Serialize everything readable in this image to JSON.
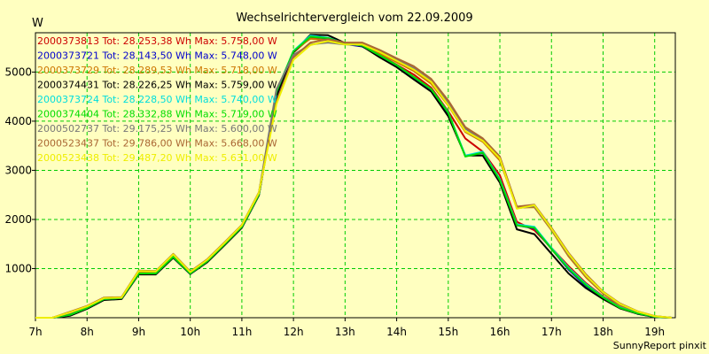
{
  "chart_data": {
    "type": "line",
    "title": "Wechselrichtervergleich vom 22.09.2009",
    "ylabel": "W",
    "xlabel": "",
    "footer": "SunnyReport pinxit",
    "ylim": [
      0,
      5800
    ],
    "xlim": [
      7,
      19.4
    ],
    "y_ticks": [
      1000,
      2000,
      3000,
      4000,
      5000
    ],
    "x_ticks": [
      {
        "label": "7h",
        "value": 7
      },
      {
        "label": "8h",
        "value": 8
      },
      {
        "label": "9h",
        "value": 9
      },
      {
        "label": "10h",
        "value": 10
      },
      {
        "label": "11h",
        "value": 11
      },
      {
        "label": "12h",
        "value": 12
      },
      {
        "label": "13h",
        "value": 13
      },
      {
        "label": "14h",
        "value": 14
      },
      {
        "label": "15h",
        "value": 15
      },
      {
        "label": "16h",
        "value": 16
      },
      {
        "label": "17h",
        "value": 17
      },
      {
        "label": "18h",
        "value": 18
      },
      {
        "label": "19h",
        "value": 19
      }
    ],
    "grid": true,
    "legend_position": "top-left",
    "background": "#ffffc0",
    "grid_color": "#00cc00",
    "x": [
      7,
      7.33,
      7.67,
      8,
      8.33,
      8.67,
      9,
      9.33,
      9.67,
      10,
      10.33,
      10.67,
      11,
      11.33,
      11.67,
      12,
      12.33,
      12.67,
      13,
      13.33,
      13.67,
      14,
      14.33,
      14.67,
      15,
      15.33,
      15.67,
      16,
      16.33,
      16.67,
      17,
      17.33,
      17.67,
      18,
      18.33,
      18.67,
      19,
      19.33
    ],
    "series": [
      {
        "name": "2000373813",
        "legend": "2000373813 Tot: 28.253,38 Wh Max: 5.758,00 W",
        "color": "#cc0000",
        "values": [
          0,
          0,
          60,
          200,
          380,
          400,
          900,
          900,
          1240,
          900,
          1150,
          1500,
          1850,
          2500,
          4500,
          5400,
          5700,
          5680,
          5580,
          5550,
          5350,
          5150,
          4950,
          4680,
          4200,
          3650,
          3380,
          2900,
          1950,
          1780,
          1420,
          1050,
          700,
          430,
          230,
          100,
          20,
          0
        ]
      },
      {
        "name": "2000373721",
        "legend": "2000373721 Tot: 28.143,50 Wh Max: 5.748,00 W",
        "color": "#0000cc",
        "values": [
          0,
          0,
          50,
          190,
          370,
          390,
          890,
          890,
          1230,
          890,
          1140,
          1490,
          1840,
          2500,
          4520,
          5420,
          5740,
          5650,
          5570,
          5520,
          5330,
          5130,
          4880,
          4620,
          4150,
          3300,
          3350,
          2800,
          1880,
          1820,
          1400,
          980,
          640,
          400,
          200,
          80,
          15,
          0
        ]
      },
      {
        "name": "2000373729",
        "legend": "2000373729 Tot: 28.289,53 Wh Max: 5.718,00 W",
        "color": "#cc7700",
        "values": [
          0,
          0,
          80,
          210,
          390,
          400,
          920,
          920,
          1260,
          910,
          1160,
          1510,
          1860,
          2520,
          4580,
          5430,
          5680,
          5650,
          5580,
          5560,
          5380,
          5200,
          5020,
          4760,
          4320,
          3780,
          3580,
          3200,
          2240,
          2250,
          1780,
          1250,
          820,
          490,
          250,
          110,
          25,
          0
        ]
      },
      {
        "name": "2000374431",
        "legend": "2000374431 Tot: 28.226,25 Wh Max: 5.759,00 W",
        "color": "#000000",
        "values": [
          0,
          0,
          40,
          180,
          360,
          380,
          880,
          880,
          1220,
          890,
          1130,
          1480,
          1830,
          2490,
          4500,
          5400,
          5760,
          5750,
          5590,
          5530,
          5300,
          5100,
          4850,
          4600,
          4100,
          3300,
          3300,
          2750,
          1800,
          1700,
          1300,
          900,
          600,
          380,
          190,
          80,
          15,
          0
        ]
      },
      {
        "name": "2000373724",
        "legend": "2000373724 Tot: 28.228,50 Wh Max: 5.740,00 W",
        "color": "#00dddd",
        "values": [
          0,
          0,
          60,
          200,
          380,
          400,
          900,
          900,
          1240,
          900,
          1150,
          1500,
          1850,
          2510,
          4600,
          5430,
          5740,
          5700,
          5580,
          5540,
          5340,
          5140,
          4900,
          4650,
          4180,
          3300,
          3380,
          2820,
          1900,
          1850,
          1420,
          1020,
          680,
          420,
          210,
          90,
          20,
          0
        ]
      },
      {
        "name": "2000374404",
        "legend": "2000374404 Tot: 28.332,88 Wh Max: 5.719,00 W",
        "color": "#00dd00",
        "values": [
          0,
          0,
          60,
          200,
          380,
          400,
          900,
          900,
          1240,
          900,
          1150,
          1500,
          1850,
          2510,
          4600,
          5420,
          5719,
          5690,
          5580,
          5540,
          5340,
          5140,
          4900,
          4650,
          4170,
          3280,
          3360,
          2800,
          1880,
          1830,
          1400,
          1000,
          660,
          410,
          200,
          90,
          20,
          0
        ]
      },
      {
        "name": "2000502737",
        "legend": "2000502737 Tot: 29.175,25 Wh Max: 5.600,00 W",
        "color": "#777777",
        "values": [
          0,
          0,
          100,
          230,
          400,
          410,
          950,
          940,
          1290,
          930,
          1180,
          1530,
          1880,
          2540,
          4650,
          5350,
          5560,
          5600,
          5560,
          5560,
          5420,
          5250,
          5080,
          4820,
          4380,
          3850,
          3620,
          3250,
          2230,
          2270,
          1800,
          1280,
          850,
          510,
          270,
          120,
          30,
          0
        ]
      },
      {
        "name": "2000523437",
        "legend": "2000523437 Tot: 29.786,00 Wh Max: 5.668,00 W",
        "color": "#aa6633",
        "values": [
          0,
          0,
          120,
          240,
          410,
          420,
          960,
          950,
          1300,
          940,
          1190,
          1540,
          1890,
          2550,
          4400,
          5300,
          5600,
          5668,
          5600,
          5600,
          5450,
          5280,
          5120,
          4860,
          4420,
          3880,
          3650,
          3280,
          2260,
          2300,
          1830,
          1320,
          880,
          530,
          290,
          130,
          35,
          0
        ]
      },
      {
        "name": "2000523438",
        "legend": "2000523438 Tot: 29.487,20 Wh Max: 5.631,00 W",
        "color": "#eeee00",
        "values": [
          0,
          0,
          110,
          230,
          400,
          410,
          950,
          940,
          1290,
          930,
          1180,
          1530,
          1880,
          2540,
          4350,
          5250,
          5550,
          5631,
          5560,
          5560,
          5410,
          5230,
          5050,
          4800,
          4330,
          3800,
          3600,
          3240,
          2220,
          2290,
          1810,
          1300,
          860,
          520,
          280,
          125,
          30,
          0
        ]
      }
    ]
  }
}
